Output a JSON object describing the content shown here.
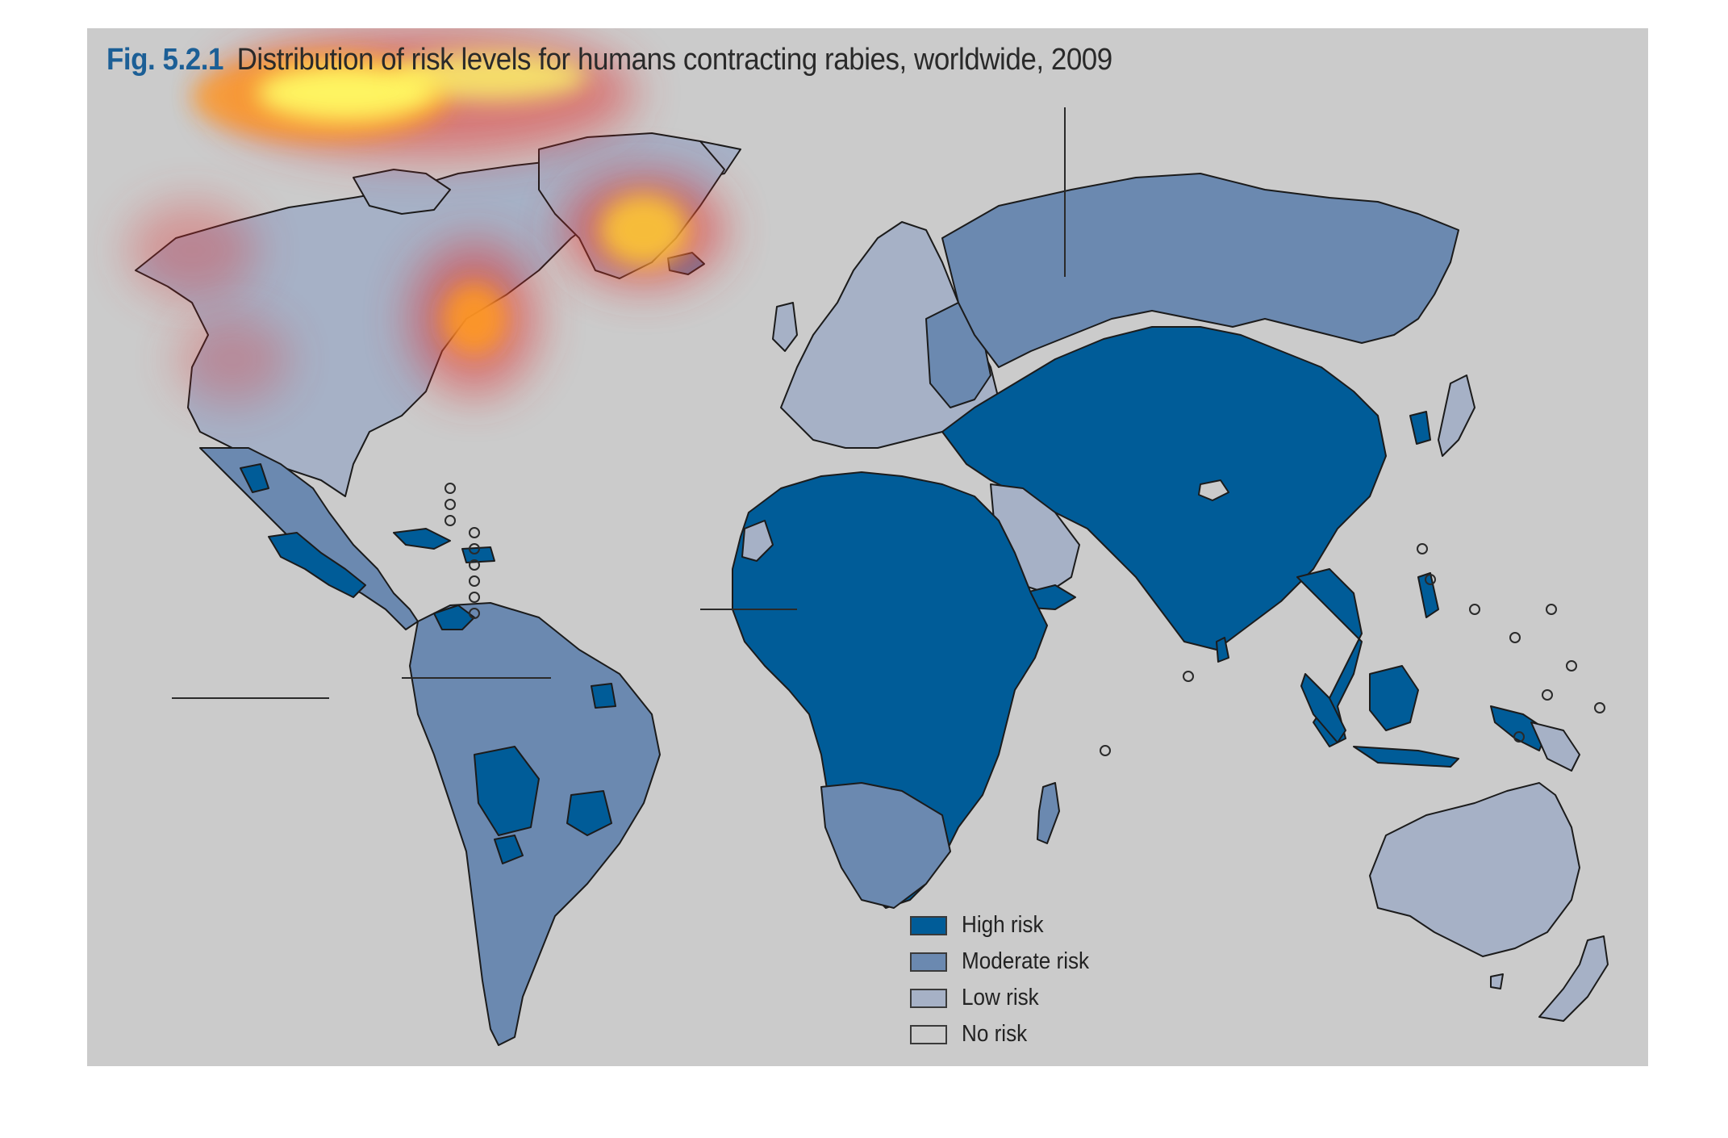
{
  "figure": {
    "number": "Fig. 5.2.1",
    "title": "Distribution of risk levels for humans contracting rabies, worldwide, 2009"
  },
  "legend": [
    {
      "id": "high",
      "label": "High risk",
      "color": "#005c98"
    },
    {
      "id": "moderate",
      "label": "Moderate risk",
      "color": "#6b89b0"
    },
    {
      "id": "low",
      "label": "Low risk",
      "color": "#a6b1c6"
    },
    {
      "id": "none",
      "label": "No risk",
      "color": "#cbcbcb"
    }
  ],
  "colors": {
    "ocean": "#cbcbcb",
    "border": "#1b1b1b",
    "heat_core": "#ffff66",
    "heat_mid": "#ff9922",
    "heat_edge": "#e03030"
  }
}
